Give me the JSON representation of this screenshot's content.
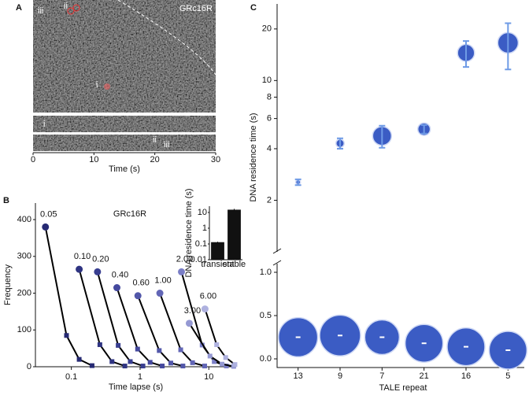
{
  "chart_data": [
    {
      "type": "image",
      "panel": "A",
      "title": "GRc16R",
      "annotations": [
        "iii",
        "ii",
        "i",
        "i",
        "ii",
        "iii"
      ],
      "xlabel": "Time (s)",
      "xlim": [
        0,
        30
      ],
      "xticks": [
        0,
        10,
        20,
        30
      ]
    },
    {
      "type": "line",
      "panel": "B",
      "title": "GRc16R",
      "xlabel": "Time lapse (s)",
      "ylabel": "Frequency",
      "xlog": true,
      "xlim": [
        0.03,
        25
      ],
      "xticks": [
        0.1,
        1,
        10
      ],
      "ylim": [
        0,
        445
      ],
      "yticks": [
        0,
        100,
        200,
        300,
        400
      ],
      "series": [
        {
          "name": "0.05",
          "color": "#262a73",
          "x": [
            0.042,
            0.085,
            0.13,
            0.2
          ],
          "values": [
            380,
            85,
            20,
            3
          ]
        },
        {
          "name": "0.10",
          "color": "#2f3482",
          "x": [
            0.13,
            0.26,
            0.39,
            0.6
          ],
          "values": [
            265,
            60,
            14,
            2
          ]
        },
        {
          "name": "0.20",
          "color": "#383e90",
          "x": [
            0.24,
            0.48,
            0.72,
            1.1
          ],
          "values": [
            258,
            58,
            14,
            2
          ]
        },
        {
          "name": "0.40",
          "color": "#45499e",
          "x": [
            0.46,
            0.92,
            1.4,
            2.1
          ],
          "values": [
            215,
            48,
            12,
            2
          ]
        },
        {
          "name": "0.60",
          "color": "#5257a9",
          "x": [
            0.93,
            1.9,
            2.8,
            4.2
          ],
          "values": [
            193,
            44,
            10,
            2
          ]
        },
        {
          "name": "1.00",
          "color": "#6266b6",
          "x": [
            1.94,
            3.9,
            5.8,
            8.7
          ],
          "values": [
            200,
            46,
            11,
            2
          ]
        },
        {
          "name": "2.00",
          "color": "#7a7ec6",
          "x": [
            4.0,
            8.0,
            12,
            18
          ],
          "values": [
            258,
            59,
            14,
            2
          ]
        },
        {
          "name": "3.00",
          "color": "#9599d3",
          "x": [
            5.2,
            10.4,
            15.6,
            23
          ],
          "values": [
            118,
            29,
            7,
            1
          ]
        },
        {
          "name": "6.00",
          "color": "#aeb1df",
          "x": [
            8.8,
            13,
            17.6,
            24
          ],
          "values": [
            157,
            60,
            25,
            6
          ]
        }
      ]
    },
    {
      "type": "bar",
      "ylabel": "DNA residence time (s)",
      "categories": [
        "transient",
        "stable"
      ],
      "values": [
        0.13,
        15
      ],
      "errors": [
        0.01,
        2
      ],
      "color": "#111111",
      "ylog": true,
      "ylim": [
        0.01,
        25
      ],
      "yticks": [
        0.01,
        0.1,
        1,
        10
      ]
    },
    {
      "type": "bubble",
      "panel": "C",
      "xlabel": "TALE repeat",
      "ylabel": "DNA residence time (s)",
      "categories": [
        "13",
        "9",
        "7",
        "21",
        "16",
        "5"
      ],
      "color": "#3b5cc4",
      "ylog": true,
      "ylim": [
        1,
        28
      ],
      "yticks": [
        2,
        4,
        6,
        8,
        10,
        20
      ],
      "y2lim": [
        -0.1,
        1.1
      ],
      "y2ticks": [
        {
          "value": 0,
          "label": "0.0"
        },
        {
          "value": 0.5,
          "label": "0.5"
        },
        {
          "value": 1,
          "label": "1.0"
        }
      ],
      "series": [
        {
          "values": [
            2.55,
            4.3,
            4.75,
            5.2,
            14.5,
            16.6
          ],
          "errors": [
            0.1,
            0.3,
            0.7,
            0.3,
            2.5,
            5
          ],
          "sizes": [
            1,
            3,
            16,
            7,
            13,
            19
          ]
        },
        {
          "axis": "y2",
          "values": [
            0.25,
            0.27,
            0.25,
            0.18,
            0.14,
            0.1
          ],
          "sizes": [
            69,
            75,
            54,
            64,
            64,
            64
          ]
        }
      ]
    }
  ]
}
